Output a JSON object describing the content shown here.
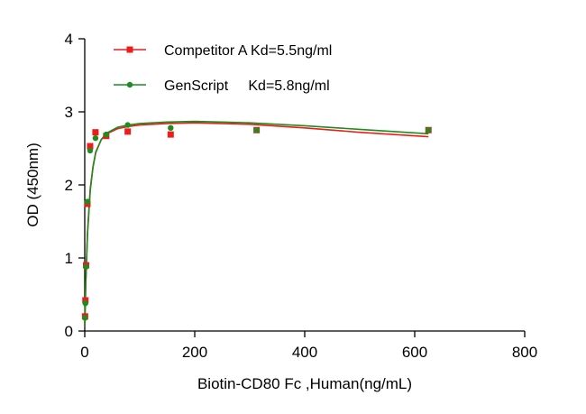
{
  "chart_data": {
    "type": "scatter",
    "title": "",
    "xlabel": "Biotin-CD80 Fc ,Human(ng/mL)",
    "ylabel": "OD (450nm)",
    "xlim": [
      0,
      800
    ],
    "ylim": [
      0,
      4
    ],
    "x_ticks": [
      0,
      200,
      400,
      600,
      800
    ],
    "y_ticks": [
      0,
      1,
      2,
      3,
      4
    ],
    "x_tick_labels": [
      "0",
      "200",
      "400",
      "600",
      "800"
    ],
    "y_tick_labels": [
      "0",
      "1",
      "2",
      "3",
      "4"
    ],
    "grid": false,
    "legend_position": "top-left",
    "series": [
      {
        "name": "Competitor A Kd=5.5ng/ml",
        "color": "#ee1c1c",
        "marker": "square",
        "x": [
          0.61,
          1.22,
          2.44,
          4.88,
          9.77,
          19.53,
          39.06,
          78.13,
          156.25,
          312.5,
          625
        ],
        "y": [
          0.2,
          0.42,
          0.9,
          1.74,
          2.53,
          2.72,
          2.67,
          2.73,
          2.69,
          2.75,
          2.75
        ],
        "fit": [
          [
            0,
            0.05
          ],
          [
            2,
            0.7
          ],
          [
            5,
            1.35
          ],
          [
            10,
            1.95
          ],
          [
            15,
            2.25
          ],
          [
            20,
            2.45
          ],
          [
            30,
            2.62
          ],
          [
            40,
            2.7
          ],
          [
            60,
            2.77
          ],
          [
            80,
            2.8
          ],
          [
            100,
            2.82
          ],
          [
            150,
            2.84
          ],
          [
            200,
            2.85
          ],
          [
            300,
            2.83
          ],
          [
            400,
            2.78
          ],
          [
            500,
            2.72
          ],
          [
            625,
            2.66
          ]
        ]
      },
      {
        "name": "GenScript     Kd=5.8ng/ml",
        "color": "#1e8c1e",
        "marker": "circle",
        "x": [
          0.61,
          1.22,
          2.44,
          4.88,
          9.77,
          19.53,
          39.06,
          78.13,
          156.25,
          312.5,
          625
        ],
        "y": [
          0.18,
          0.38,
          0.88,
          1.77,
          2.47,
          2.64,
          2.69,
          2.82,
          2.78,
          2.75,
          2.75
        ],
        "fit": [
          [
            0,
            0.05
          ],
          [
            2,
            0.68
          ],
          [
            5,
            1.32
          ],
          [
            10,
            1.92
          ],
          [
            15,
            2.24
          ],
          [
            20,
            2.44
          ],
          [
            30,
            2.62
          ],
          [
            40,
            2.71
          ],
          [
            60,
            2.79
          ],
          [
            80,
            2.82
          ],
          [
            100,
            2.84
          ],
          [
            150,
            2.86
          ],
          [
            200,
            2.87
          ],
          [
            300,
            2.85
          ],
          [
            400,
            2.81
          ],
          [
            500,
            2.76
          ],
          [
            625,
            2.7
          ]
        ]
      }
    ]
  }
}
